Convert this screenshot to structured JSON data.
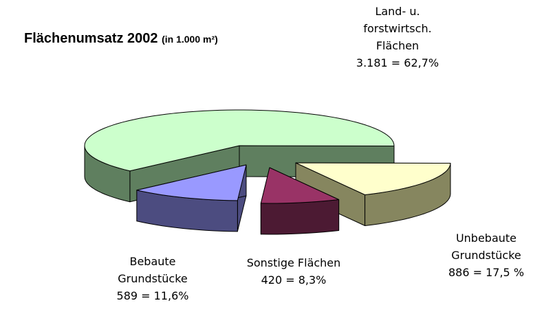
{
  "chart_data": {
    "type": "pie",
    "title": "Flächenumsatz 2002",
    "subtitle": "(in 1.000 m²)",
    "categories": [
      [
        "Land- u.",
        "forstwirtsch.",
        "Flächen"
      ],
      [
        "Unbebaute",
        "Grundstücke"
      ],
      [
        "Sonstige Flächen"
      ],
      [
        "Bebaute",
        "Grundstücke"
      ]
    ],
    "values": [
      3181,
      886,
      420,
      589
    ],
    "value_labels": [
      "3.181 = 62,7%",
      "886 = 17,5 %",
      "420 = 8,3%",
      "589 = 11,6%"
    ],
    "colors": [
      "#ccffcc",
      "#ffffcc",
      "#993366",
      "#9999ff"
    ],
    "side_colors": [
      "#5f7f5f",
      "#86865f",
      "#4c1a33",
      "#4c4c80"
    ]
  }
}
